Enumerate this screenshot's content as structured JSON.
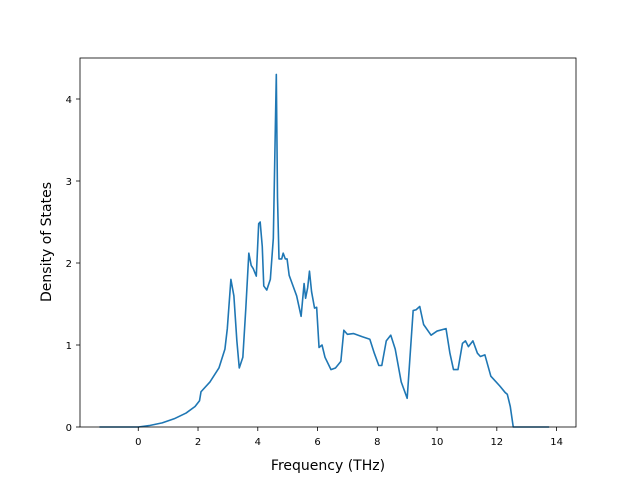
{
  "chart_data": {
    "type": "line",
    "title": "",
    "xlabel": "Frequency (THz)",
    "ylabel": "Density of States",
    "xlim": [
      -1.95,
      14.65
    ],
    "ylim": [
      0,
      4.5
    ],
    "grid": false,
    "x_ticks": [
      {
        "value": 0,
        "label": "0"
      },
      {
        "value": 2,
        "label": "2"
      },
      {
        "value": 4,
        "label": "4"
      },
      {
        "value": 6,
        "label": "6"
      },
      {
        "value": 8,
        "label": "8"
      },
      {
        "value": 10,
        "label": "10"
      },
      {
        "value": 12,
        "label": "12"
      },
      {
        "value": 14,
        "label": "14"
      }
    ],
    "y_ticks": [
      {
        "value": 0,
        "label": "0"
      },
      {
        "value": 1,
        "label": "1"
      },
      {
        "value": 2,
        "label": "2"
      },
      {
        "value": 3,
        "label": "3"
      },
      {
        "value": 4,
        "label": "4"
      }
    ],
    "series": [
      {
        "color": "#1f77b4",
        "x": [
          -1.3,
          -0.8,
          0.0,
          0.4,
          0.8,
          1.2,
          1.6,
          1.9,
          2.05,
          2.1,
          2.4,
          2.7,
          2.9,
          2.98,
          3.1,
          3.2,
          3.3,
          3.38,
          3.5,
          3.6,
          3.7,
          3.78,
          3.85,
          3.95,
          4.03,
          4.08,
          4.15,
          4.2,
          4.3,
          4.42,
          4.52,
          4.62,
          4.66,
          4.71,
          4.8,
          4.85,
          4.92,
          4.98,
          5.05,
          5.15,
          5.3,
          5.45,
          5.55,
          5.6,
          5.67,
          5.73,
          5.8,
          5.9,
          5.97,
          6.05,
          6.15,
          6.25,
          6.45,
          6.6,
          6.78,
          6.88,
          7.0,
          7.2,
          7.5,
          7.75,
          7.9,
          8.05,
          8.15,
          8.3,
          8.45,
          8.6,
          8.8,
          9.0,
          9.2,
          9.3,
          9.42,
          9.55,
          9.8,
          10.0,
          10.3,
          10.43,
          10.55,
          10.7,
          10.85,
          10.95,
          11.05,
          11.2,
          11.35,
          11.45,
          11.6,
          11.8,
          12.1,
          12.28,
          12.35,
          12.45,
          12.55,
          13.0,
          13.4,
          13.75
        ],
        "y": [
          0.0,
          0.0,
          0.0,
          0.02,
          0.05,
          0.1,
          0.17,
          0.25,
          0.32,
          0.43,
          0.55,
          0.72,
          0.95,
          1.2,
          1.8,
          1.6,
          1.05,
          0.72,
          0.85,
          1.45,
          2.12,
          1.97,
          1.93,
          1.84,
          2.48,
          2.5,
          2.2,
          1.72,
          1.67,
          1.8,
          2.3,
          4.3,
          2.8,
          2.05,
          2.05,
          2.12,
          2.05,
          2.05,
          1.85,
          1.75,
          1.6,
          1.35,
          1.75,
          1.57,
          1.7,
          1.9,
          1.65,
          1.45,
          1.46,
          0.97,
          1.0,
          0.85,
          0.7,
          0.72,
          0.8,
          1.18,
          1.13,
          1.14,
          1.1,
          1.07,
          0.9,
          0.75,
          0.75,
          1.05,
          1.12,
          0.95,
          0.55,
          0.35,
          1.42,
          1.43,
          1.47,
          1.25,
          1.12,
          1.17,
          1.2,
          0.9,
          0.7,
          0.7,
          1.02,
          1.05,
          0.98,
          1.05,
          0.9,
          0.86,
          0.88,
          0.62,
          0.5,
          0.42,
          0.4,
          0.25,
          0.0,
          0.0,
          0.0,
          0.0
        ]
      }
    ]
  }
}
